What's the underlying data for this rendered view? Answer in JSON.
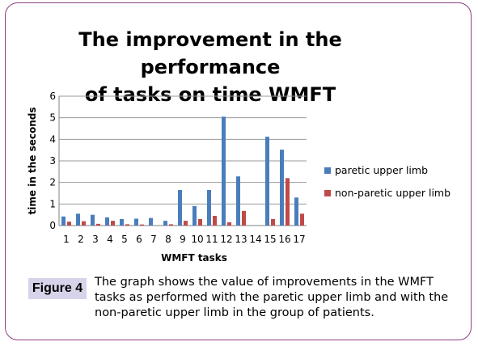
{
  "chart_data": {
    "type": "bar",
    "title_lines": [
      "The improvement in the performance",
      "of tasks on time WMFT"
    ],
    "xlabel": "WMFT tasks",
    "ylabel": "time in the seconds",
    "ylim": [
      0,
      6
    ],
    "yticks": [
      "0",
      "1",
      "2",
      "3",
      "4",
      "5",
      "6"
    ],
    "grid": true,
    "legend_position": "right",
    "categories": [
      "1",
      "2",
      "3",
      "4",
      "5",
      "6",
      "7",
      "8",
      "9",
      "10",
      "11",
      "12",
      "13",
      "14",
      "15",
      "16",
      "17"
    ],
    "series": [
      {
        "name": "paretic upper limb",
        "color": "#4a7ebb",
        "values": [
          0.42,
          0.55,
          0.5,
          0.38,
          0.3,
          0.32,
          0.35,
          0.22,
          1.65,
          0.9,
          1.65,
          5.05,
          2.28,
          0,
          4.12,
          3.52,
          1.3
        ]
      },
      {
        "name": "non-paretic upper limb",
        "color": "#be4b48",
        "values": [
          0.18,
          0.2,
          0.08,
          0.22,
          0.06,
          0.05,
          0,
          0.06,
          0.22,
          0.3,
          0.45,
          0.15,
          0.68,
          0,
          0.3,
          2.2,
          0.55
        ]
      }
    ]
  },
  "caption": {
    "label": "Figure 4",
    "text": "The graph shows the value of improvements in the WMFT tasks as performed with the paretic upper limb and with the non-paretic upper limb in the group of patients."
  }
}
